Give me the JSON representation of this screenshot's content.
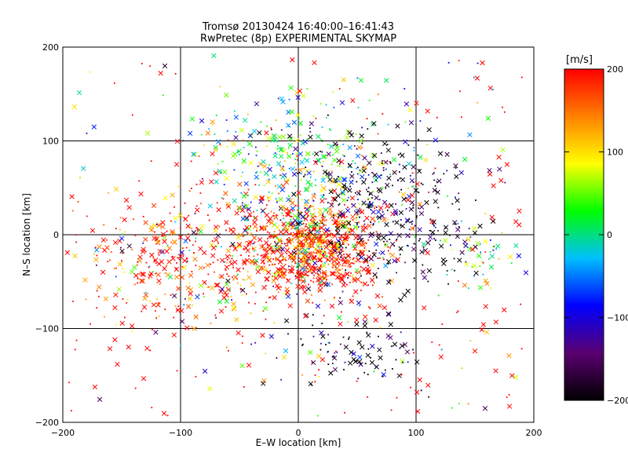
{
  "chart_data": {
    "type": "scatter",
    "title": "Tromsø 20130424 16:40:00–16:41:43",
    "subtitle": "RwPretec (8p) EXPERIMENTAL SKYMAP",
    "xlabel": "E–W location [km]",
    "ylabel": "N–S location [km]",
    "xlim": [
      -200,
      200
    ],
    "ylim": [
      -200,
      200
    ],
    "xticks": [
      -200,
      -100,
      0,
      100,
      200
    ],
    "yticks": [
      -200,
      -100,
      0,
      100,
      200
    ],
    "grid": true,
    "markers": [
      "x",
      "dot"
    ],
    "colorbar": {
      "label": "[m/s]",
      "range": [
        -200,
        200
      ],
      "ticks": [
        200,
        100,
        0,
        -100,
        -200
      ],
      "colormap": [
        "#000000",
        "#5a0070",
        "#0000ff",
        "#00bfff",
        "#00ff00",
        "#ffff00",
        "#ff8000",
        "#ff0000"
      ],
      "placement": "right"
    },
    "color_scale": "velocity [m/s] mapped from -200 (black) through blue, cyan, green, yellow to 200 (red)",
    "clusters": [
      {
        "region": "central",
        "center": [
          10,
          -15
        ],
        "spread": [
          30,
          25
        ],
        "dominant_velocity": 200
      },
      {
        "region": "west",
        "center": [
          -100,
          -30
        ],
        "spread": [
          45,
          40
        ],
        "dominant_velocity": 200
      },
      {
        "region": "north",
        "center": [
          -5,
          75
        ],
        "spread": [
          40,
          35
        ],
        "dominant_velocity": 20
      },
      {
        "region": "north-east",
        "center": [
          60,
          60
        ],
        "spread": [
          35,
          30
        ],
        "dominant_velocity": -200
      },
      {
        "region": "east",
        "center": [
          90,
          -5
        ],
        "spread": [
          35,
          25
        ],
        "dominant_velocity": -200
      },
      {
        "region": "south-east",
        "center": [
          50,
          -120
        ],
        "spread": [
          30,
          25
        ],
        "dominant_velocity": -200
      },
      {
        "region": "far-east",
        "center": [
          155,
          -25
        ],
        "spread": [
          20,
          15
        ],
        "dominant_velocity": 40
      }
    ]
  }
}
